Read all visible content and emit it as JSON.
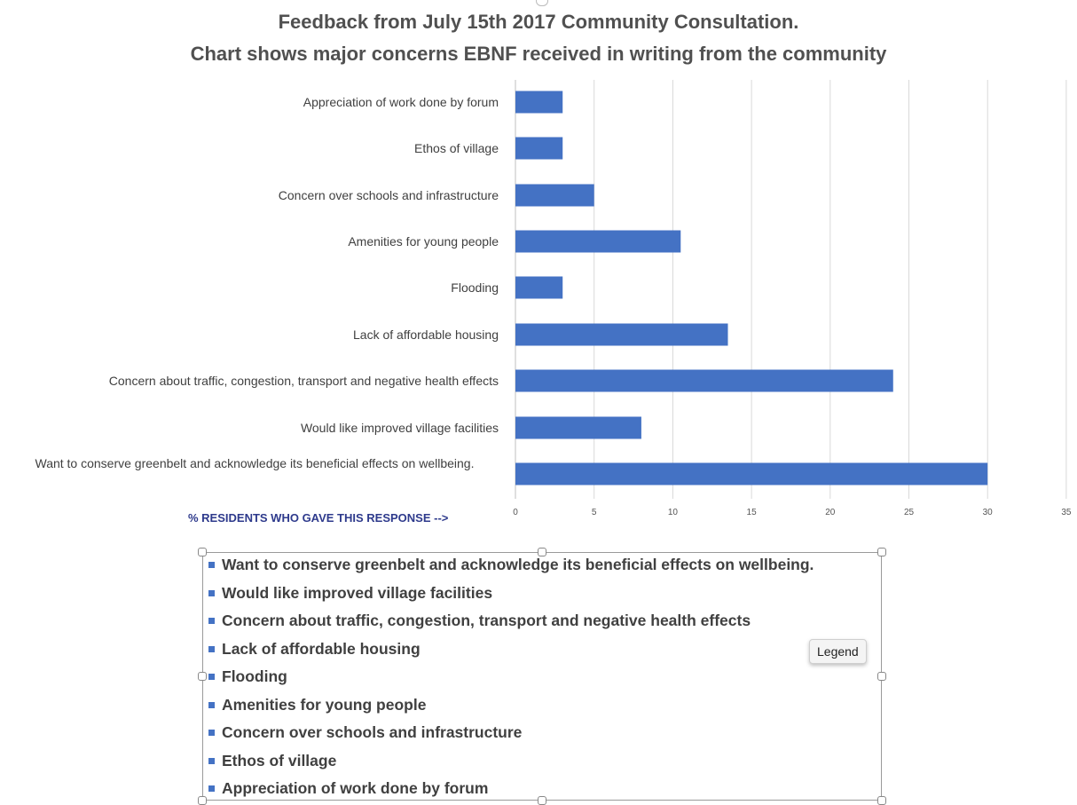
{
  "title_line1": "Feedback from July 15th 2017 Community Consultation.",
  "title_line2": "Chart shows major concerns EBNF received in writing from the community",
  "colors": {
    "bar": "#4472c4",
    "grid": "#d9d9d9",
    "axis_label": "#2e3a8c"
  },
  "legend_tooltip": "Legend",
  "chart_data": {
    "type": "bar",
    "orientation": "horizontal",
    "categories": [
      "Appreciation of work done by forum",
      "Ethos of village",
      "Concern over schools and infrastructure",
      "Amenities for young people",
      "Flooding",
      "Lack of affordable housing",
      "Concern about traffic, congestion, transport and negative health effects",
      "Would like improved village facilities",
      "Want to conserve greenbelt and acknowledge its beneficial effects on wellbeing."
    ],
    "values": [
      3,
      3,
      5,
      10.5,
      3,
      13.5,
      24,
      8,
      30
    ],
    "xlabel": "% RESIDENTS WHO GAVE  THIS RESPONSE  -->",
    "xlim": [
      0,
      35
    ],
    "xticks": [
      "0",
      "5",
      "10",
      "15",
      "20",
      "25",
      "30",
      "35"
    ],
    "grid": true,
    "legend_position": "bottom",
    "legend_entries": [
      "Want to conserve greenbelt and acknowledge its beneficial effects on wellbeing.",
      "Would like improved village facilities",
      "Concern about traffic, congestion, transport and negative health effects",
      "Lack of affordable housing",
      "Flooding",
      "Amenities for young people",
      "Concern over schools and infrastructure",
      "Ethos of village",
      "Appreciation of work done by forum"
    ]
  }
}
